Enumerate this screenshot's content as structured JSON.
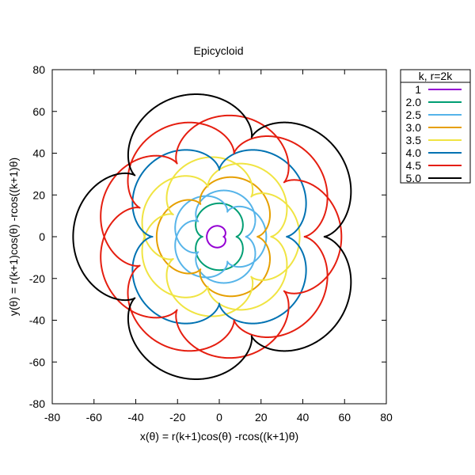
{
  "chart_data": {
    "type": "line",
    "title": "Epicycloid",
    "xlabel": "x(θ) = r(k+1)cos(θ) -rcos((k+1)θ)",
    "ylabel": "y(θ) = r(k+1)cos(θ) -rcos((k+1)θ)",
    "xlim": [
      -80,
      80
    ],
    "ylim": [
      -80,
      80
    ],
    "xticks": [
      -80,
      -60,
      -40,
      -20,
      0,
      20,
      40,
      60,
      80
    ],
    "yticks": [
      -80,
      -60,
      -40,
      -20,
      0,
      20,
      40,
      60,
      80
    ],
    "grid": false,
    "legend": {
      "title": "k, r=2k",
      "placement": "outside-top-right"
    },
    "series": [
      {
        "name": "1",
        "k": 1.0,
        "r": 2,
        "color": "#9400d3"
      },
      {
        "name": "2.0",
        "k": 2.0,
        "r": 4,
        "color": "#009e73"
      },
      {
        "name": "2.5",
        "k": 2.5,
        "r": 5,
        "color": "#56b4e9"
      },
      {
        "name": "3.0",
        "k": 3.0,
        "r": 6,
        "color": "#e69f00"
      },
      {
        "name": "3.5",
        "k": 3.5,
        "r": 7,
        "color": "#f0e442"
      },
      {
        "name": "4.0",
        "k": 4.0,
        "r": 8,
        "color": "#0072b2"
      },
      {
        "name": "4.5",
        "k": 4.5,
        "r": 9,
        "color": "#e51e10"
      },
      {
        "name": "5.0",
        "k": 5.0,
        "r": 10,
        "color": "#000000"
      }
    ]
  }
}
